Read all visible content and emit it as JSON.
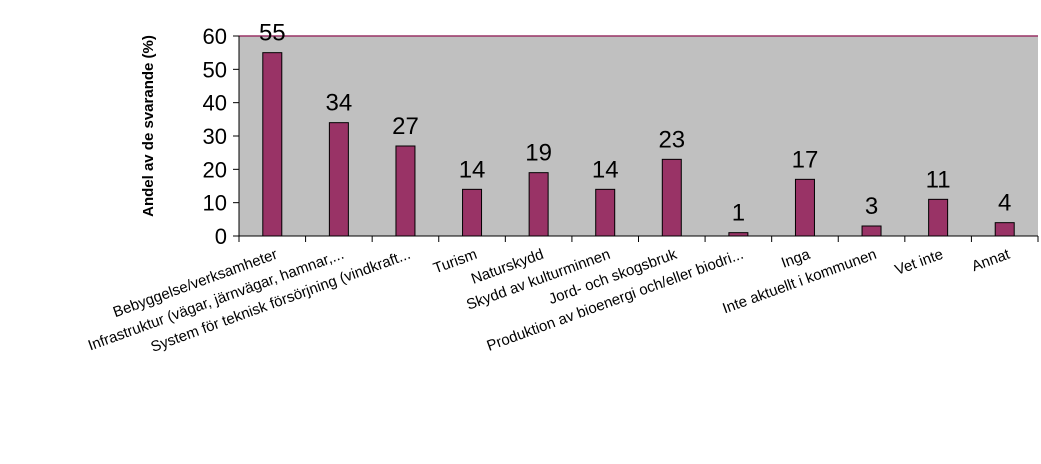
{
  "chart_data": {
    "type": "bar",
    "title": "",
    "xlabel": "",
    "ylabel": "Andel av de svarande (%)",
    "ylim": [
      0,
      60
    ],
    "yticks": [
      0,
      10,
      20,
      30,
      40,
      50,
      60
    ],
    "grid": false,
    "legend": "none",
    "colors": {
      "plot_background": "#c0c0c0",
      "bar_fill": "#993366",
      "bar_stroke": "#000000",
      "top_line": "#993366"
    },
    "categories": [
      "Bebyggelse/verksamheter",
      "Infrastruktur (vägar, järnvägar, hamnar,...",
      "System för teknisk försörjning (vindkraft...",
      "Turism",
      "Naturskydd",
      "Skydd av kulturminnen",
      "Jord- och skogsbruk",
      "Produktion av bioenergi och/eller biodri...",
      "Inga",
      "Inte aktuellt i kommunen",
      "Vet inte",
      "Annat"
    ],
    "values": [
      55,
      34,
      27,
      14,
      19,
      14,
      23,
      1,
      17,
      3,
      11,
      4
    ]
  }
}
